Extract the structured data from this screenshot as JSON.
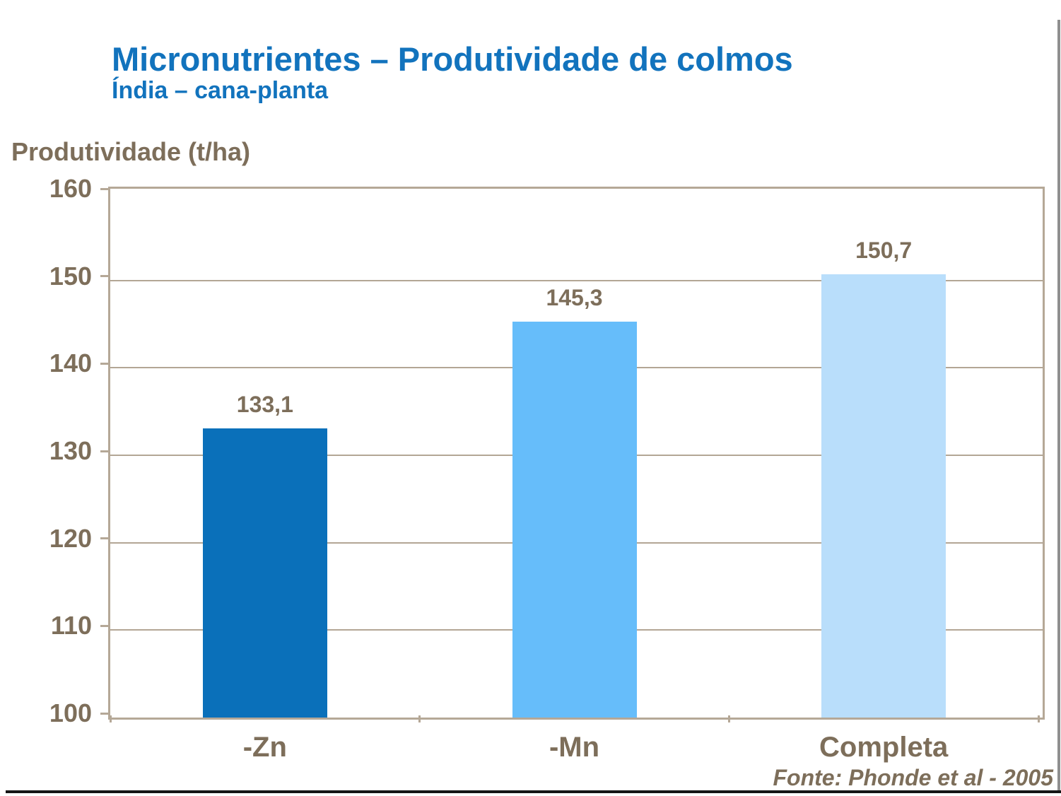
{
  "header": {
    "title": "Micronutrientes – Produtividade de colmos",
    "subtitle": "Índia – cana-planta"
  },
  "source": {
    "label": "Fonte: Phonde et al - 2005"
  },
  "chart_data": {
    "type": "bar",
    "title": "Micronutrientes – Produtividade de colmos",
    "subtitle": "Índia – cana-planta",
    "ylabel": "Produtividade (t/ha)",
    "categories": [
      "-Zn",
      "-Mn",
      "Completa"
    ],
    "values": [
      133.1,
      145.3,
      150.7
    ],
    "value_labels": [
      "133,1",
      "145,3",
      "150,7"
    ],
    "yticks": [
      100,
      110,
      120,
      130,
      140,
      150,
      160
    ],
    "ylim": [
      100,
      160
    ],
    "grid": "horizontal",
    "legend": "none",
    "bar_colors": [
      "#0A70BA",
      "#66BDFA",
      "#B9DEFB"
    ],
    "frame_color": "#B5A897",
    "text_color": "#7D6E5A",
    "title_color": "#1273BD"
  }
}
